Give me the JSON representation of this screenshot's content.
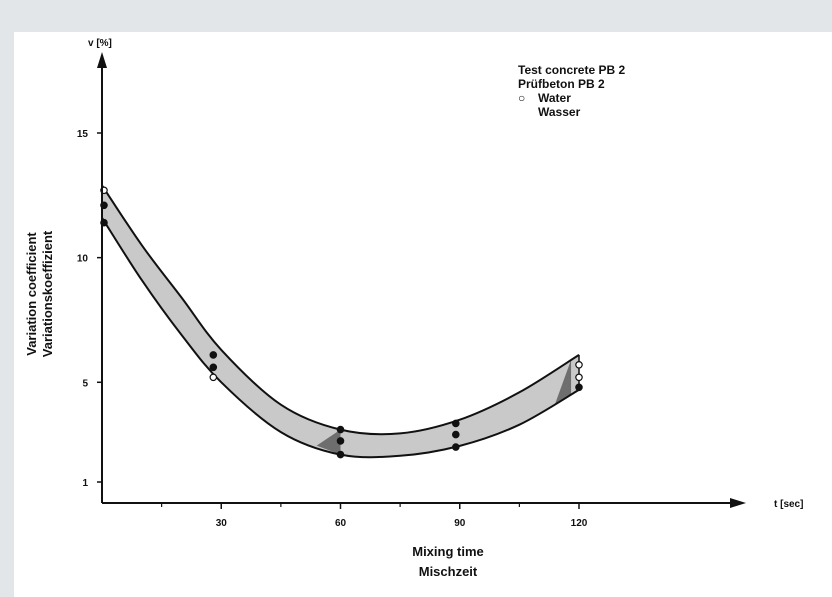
{
  "chart_data": {
    "type": "line",
    "title": "",
    "y_axis_unit": "v [%]",
    "x_axis_unit": "t [sec]",
    "ylabel_lines": [
      "Variation coefficient",
      "Variationskoeffizient"
    ],
    "xlabel_lines": [
      "Mixing time",
      "Mischzeit"
    ],
    "legend_title_lines": [
      "Test concrete PB 2",
      "Prüfbeton PB 2"
    ],
    "legend_entries": [
      {
        "symbol": "○",
        "lines": [
          "Water",
          "Wasser"
        ]
      }
    ],
    "x_ticks": [
      30,
      60,
      90,
      120
    ],
    "x_tick_labels": [
      "30",
      "60",
      "90",
      "120"
    ],
    "y_ticks": [
      1,
      5,
      10,
      15
    ],
    "y_tick_labels": [
      "1",
      "5",
      "10",
      "15"
    ],
    "xlim": [
      0,
      160
    ],
    "ylim": [
      0,
      18
    ],
    "grid": false,
    "colors": {
      "band": "#c9c9c9",
      "band_dark": "#6e6e6e",
      "ink": "#111111"
    },
    "series": [
      {
        "upper": [
          [
            0,
            12.9
          ],
          [
            10,
            10.5
          ],
          [
            20,
            8.4
          ],
          [
            30,
            6.3
          ],
          [
            45,
            4.1
          ],
          [
            60,
            3.1
          ],
          [
            75,
            2.95
          ],
          [
            90,
            3.5
          ],
          [
            105,
            4.6
          ],
          [
            120,
            6.1
          ]
        ],
        "lower": [
          [
            0,
            11.6
          ],
          [
            10,
            9.1
          ],
          [
            20,
            6.9
          ],
          [
            30,
            5.0
          ],
          [
            45,
            3.0
          ],
          [
            60,
            2.1
          ],
          [
            75,
            2.05
          ],
          [
            90,
            2.45
          ],
          [
            105,
            3.3
          ],
          [
            120,
            4.7
          ]
        ],
        "dark_segments": [
          [
            54,
            60
          ],
          [
            114,
            118
          ]
        ]
      }
    ],
    "points": [
      {
        "x": 0.5,
        "y": 12.7,
        "marker": "open"
      },
      {
        "x": 0.5,
        "y": 12.1,
        "marker": "filled"
      },
      {
        "x": 0.5,
        "y": 11.4,
        "marker": "filled"
      },
      {
        "x": 28,
        "y": 6.1,
        "marker": "filled"
      },
      {
        "x": 28,
        "y": 5.6,
        "marker": "filled"
      },
      {
        "x": 28,
        "y": 5.2,
        "marker": "open"
      },
      {
        "x": 60,
        "y": 3.1,
        "marker": "filled"
      },
      {
        "x": 60,
        "y": 2.65,
        "marker": "filled"
      },
      {
        "x": 60,
        "y": 2.1,
        "marker": "filled"
      },
      {
        "x": 89,
        "y": 3.35,
        "marker": "filled"
      },
      {
        "x": 89,
        "y": 2.9,
        "marker": "filled"
      },
      {
        "x": 89,
        "y": 2.4,
        "marker": "filled"
      },
      {
        "x": 120,
        "y": 5.7,
        "marker": "open"
      },
      {
        "x": 120,
        "y": 5.2,
        "marker": "open"
      },
      {
        "x": 120,
        "y": 4.8,
        "marker": "filled"
      }
    ]
  }
}
